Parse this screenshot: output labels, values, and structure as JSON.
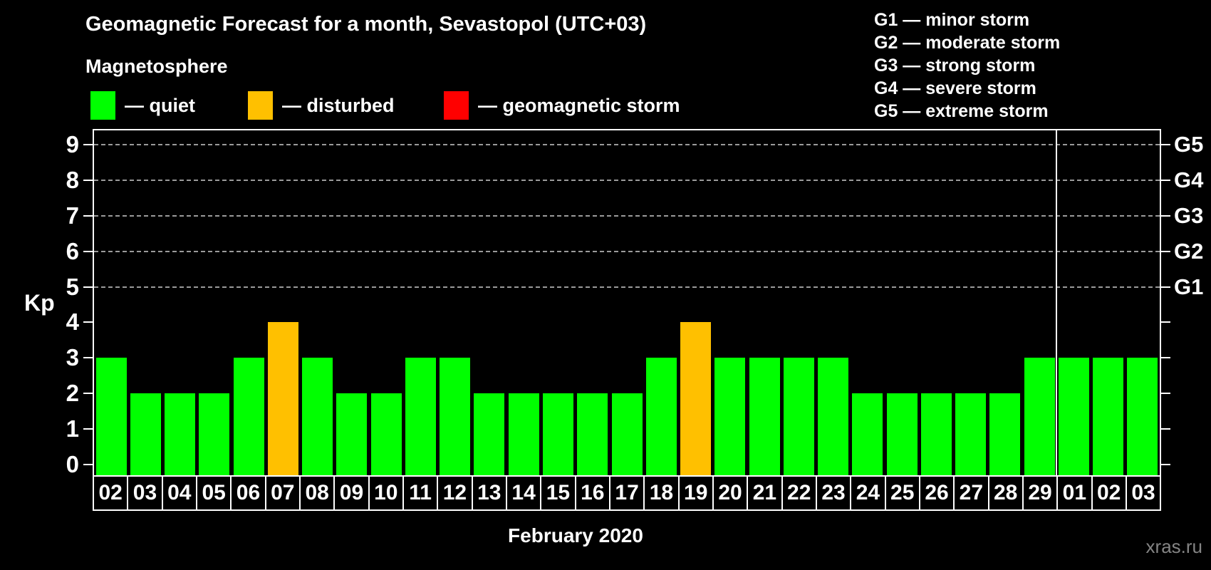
{
  "header": {
    "title": "Geomagnetic Forecast for a month, Sevastopol (UTC+03)",
    "subtitle": "Magnetosphere",
    "watermark": "xras.ru"
  },
  "legend": {
    "items": [
      {
        "label": "— quiet",
        "color": "#00ff00"
      },
      {
        "label": "— disturbed",
        "color": "#ffc000"
      },
      {
        "label": "— geomagnetic storm",
        "color": "#ff0000"
      }
    ]
  },
  "storm_scale": {
    "items": [
      "G1 — minor storm",
      "G2 — moderate storm",
      "G3 — strong storm",
      "G4 — severe storm",
      "G5 — extreme storm"
    ]
  },
  "chart_data": {
    "type": "bar",
    "title": "Geomagnetic Forecast for a month, Sevastopol (UTC+03)",
    "xlabel": "February 2020",
    "ylabel": "Kp",
    "ylim": [
      0,
      9
    ],
    "yticks": [
      0,
      1,
      2,
      3,
      4,
      5,
      6,
      7,
      8,
      9
    ],
    "gridlines_at": [
      5,
      6,
      7,
      8,
      9
    ],
    "grid": "dashed",
    "legend_position": "top",
    "right_axis": [
      {
        "label": "G1",
        "kp": 5
      },
      {
        "label": "G2",
        "kp": 6
      },
      {
        "label": "G3",
        "kp": 7
      },
      {
        "label": "G4",
        "kp": 8
      },
      {
        "label": "G5",
        "kp": 9
      }
    ],
    "categories": [
      "02",
      "03",
      "04",
      "05",
      "06",
      "07",
      "08",
      "09",
      "10",
      "11",
      "12",
      "13",
      "14",
      "15",
      "16",
      "17",
      "18",
      "19",
      "20",
      "21",
      "22",
      "23",
      "24",
      "25",
      "26",
      "27",
      "28",
      "29",
      "01",
      "02",
      "03"
    ],
    "values": [
      3,
      2,
      2,
      2,
      3,
      4,
      3,
      2,
      2,
      3,
      3,
      2,
      2,
      2,
      2,
      2,
      3,
      4,
      3,
      3,
      3,
      3,
      2,
      2,
      2,
      2,
      2,
      3,
      3,
      3,
      3
    ],
    "states": [
      "quiet",
      "quiet",
      "quiet",
      "quiet",
      "quiet",
      "disturbed",
      "quiet",
      "quiet",
      "quiet",
      "quiet",
      "quiet",
      "quiet",
      "quiet",
      "quiet",
      "quiet",
      "quiet",
      "quiet",
      "disturbed",
      "quiet",
      "quiet",
      "quiet",
      "quiet",
      "quiet",
      "quiet",
      "quiet",
      "quiet",
      "quiet",
      "quiet",
      "quiet",
      "quiet",
      "quiet"
    ],
    "state_colors": {
      "quiet": "#00ff00",
      "disturbed": "#ffc000",
      "storm": "#ff0000"
    },
    "month_separator_after_index": 27
  }
}
